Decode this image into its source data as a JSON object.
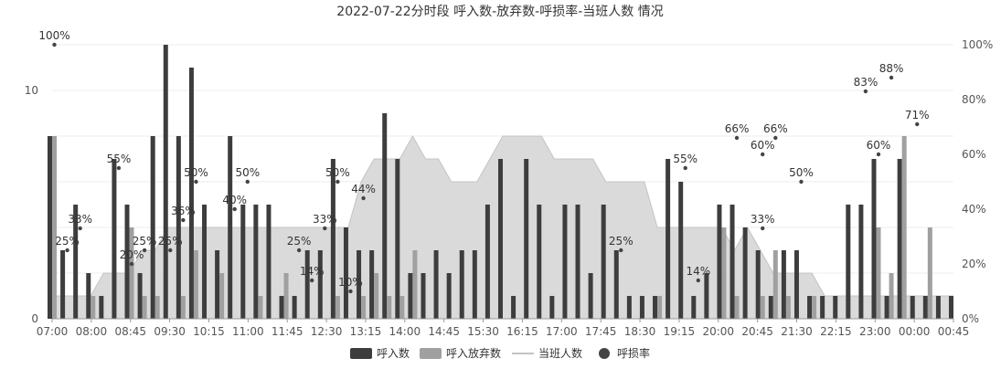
{
  "chart_data": {
    "type": "bar",
    "title": "2022-07-22分时段 呼入数-放弃数-呼损率-当班人数 情况",
    "x_tick_labels": [
      "07:00",
      "08:00",
      "08:45",
      "09:30",
      "10:15",
      "11:00",
      "11:45",
      "12:30",
      "13:15",
      "14:00",
      "14:45",
      "15:30",
      "16:15",
      "17:00",
      "17:45",
      "18:30",
      "19:15",
      "20:00",
      "20:45",
      "21:30",
      "22:15",
      "23:00",
      "00:00",
      "00:45"
    ],
    "slot_minutes": 15,
    "slot_count": 71,
    "y_left": {
      "ticks": [
        "0",
        "2",
        "4",
        "6",
        "8",
        "10",
        "12"
      ],
      "min": 0,
      "max": 12
    },
    "y_right": {
      "ticks": [
        "0%",
        "20%",
        "40%",
        "60%",
        "80%",
        "100%"
      ],
      "min": 0,
      "max": 100
    },
    "grid": true,
    "legend_position": "bottom",
    "colors": {
      "calls": "#3d3d3d",
      "abandon": "#a0a0a0",
      "staff_fill": "#d6d6d6",
      "staff_line": "#c4c4c4",
      "rate": "#444444",
      "grid": "#eeeeee",
      "axis_text": "#555555",
      "title": "#333333"
    },
    "legend": [
      {
        "name": "呼入数",
        "kind": "bar-dark"
      },
      {
        "name": "呼入放弃数",
        "kind": "bar-light"
      },
      {
        "name": "当班人数",
        "kind": "line"
      },
      {
        "name": "呼损率",
        "kind": "dot"
      }
    ],
    "series": [
      {
        "name": "呼入数",
        "axis": "left",
        "values": [
          8,
          3,
          5,
          2,
          1,
          7,
          5,
          2,
          8,
          12,
          8,
          11,
          5,
          3,
          8,
          5,
          5,
          5,
          1,
          1,
          3,
          3,
          7,
          4,
          3,
          3,
          9,
          7,
          2,
          2,
          3,
          2,
          3,
          3,
          5,
          7,
          1,
          7,
          5,
          1,
          5,
          5,
          2,
          5,
          3,
          1,
          1,
          1,
          7,
          6,
          1,
          2,
          5,
          5,
          4,
          3,
          1,
          3,
          3,
          1,
          1,
          1,
          5,
          5,
          7,
          1,
          7,
          1,
          1,
          1,
          1
        ]
      },
      {
        "name": "呼入放弃数",
        "axis": "left",
        "values": [
          8,
          0,
          0,
          1,
          0,
          0,
          4,
          1,
          1,
          0,
          1,
          3,
          0,
          2,
          0,
          0,
          1,
          0,
          2,
          0,
          0,
          0,
          1,
          0,
          1,
          2,
          1,
          1,
          3,
          0,
          0,
          0,
          0,
          0,
          0,
          0,
          0,
          0,
          0,
          0,
          0,
          0,
          0,
          0,
          0,
          0,
          0,
          1,
          0,
          0,
          0,
          0,
          4,
          1,
          0,
          1,
          3,
          1,
          0,
          1,
          0,
          0,
          0,
          0,
          4,
          2,
          8,
          0,
          4,
          0,
          0
        ]
      },
      {
        "name": "当班人数",
        "axis": "left",
        "values": [
          1,
          1,
          1,
          1,
          2,
          2,
          2,
          3,
          3,
          4,
          4,
          4,
          4,
          4,
          4,
          4,
          4,
          4,
          4,
          4,
          4,
          4,
          4,
          4,
          6,
          7,
          7,
          7,
          8,
          7,
          7,
          6,
          6,
          6,
          7,
          8,
          8,
          8,
          8,
          7,
          7,
          7,
          7,
          6,
          6,
          6,
          6,
          4,
          4,
          4,
          4,
          4,
          4,
          3,
          4,
          3,
          2,
          2,
          2,
          2,
          1,
          1,
          1,
          1,
          1,
          1,
          1,
          1,
          1,
          1,
          1
        ]
      },
      {
        "name": "呼损率",
        "axis": "right",
        "points": [
          {
            "slot": 0,
            "value": 100,
            "label": "100%"
          },
          {
            "slot": 1,
            "value": 25,
            "label": "25%"
          },
          {
            "slot": 2,
            "value": 33,
            "label": "33%"
          },
          {
            "slot": 5,
            "value": 55,
            "label": "55%"
          },
          {
            "slot": 6,
            "value": 20,
            "label": "20%"
          },
          {
            "slot": 7,
            "value": 25,
            "label": "25%"
          },
          {
            "slot": 9,
            "value": 25,
            "label": "25%"
          },
          {
            "slot": 10,
            "value": 36,
            "label": "36%"
          },
          {
            "slot": 11,
            "value": 50,
            "label": "50%"
          },
          {
            "slot": 14,
            "value": 40,
            "label": "40%"
          },
          {
            "slot": 15,
            "value": 50,
            "label": "50%"
          },
          {
            "slot": 19,
            "value": 25,
            "label": "25%"
          },
          {
            "slot": 20,
            "value": 14,
            "label": "14%"
          },
          {
            "slot": 21,
            "value": 33,
            "label": "33%"
          },
          {
            "slot": 22,
            "value": 50,
            "label": "50%"
          },
          {
            "slot": 23,
            "value": 10,
            "label": "10%"
          },
          {
            "slot": 24,
            "value": 44,
            "label": "44%"
          },
          {
            "slot": 44,
            "value": 25,
            "label": "25%"
          },
          {
            "slot": 49,
            "value": 55,
            "label": "55%"
          },
          {
            "slot": 50,
            "value": 14,
            "label": "14%"
          },
          {
            "slot": 53,
            "value": 66,
            "label": "66%"
          },
          {
            "slot": 55,
            "value": 33,
            "label": "33%"
          },
          {
            "slot": 55,
            "value": 60,
            "label": "60%"
          },
          {
            "slot": 56,
            "value": 66,
            "label": "66%"
          },
          {
            "slot": 58,
            "value": 50,
            "label": "50%"
          },
          {
            "slot": 63,
            "value": 83,
            "label": "83%"
          },
          {
            "slot": 64,
            "value": 60,
            "label": "60%"
          },
          {
            "slot": 65,
            "value": 88,
            "label": "88%"
          },
          {
            "slot": 67,
            "value": 71,
            "label": "71%"
          }
        ]
      }
    ]
  }
}
